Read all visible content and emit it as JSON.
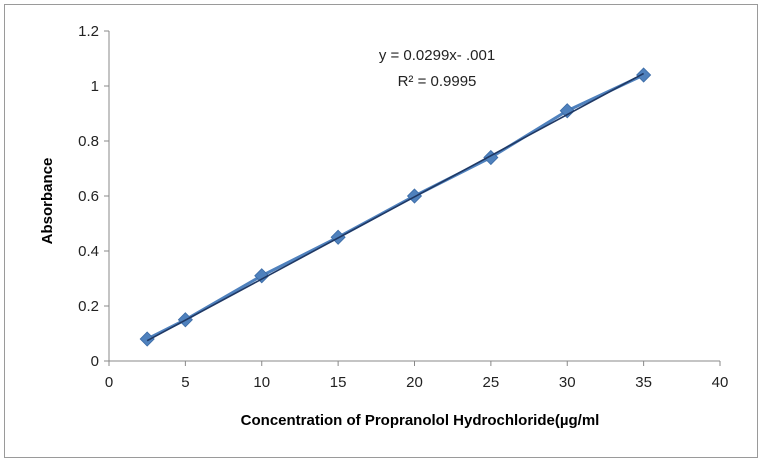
{
  "chart_data": {
    "type": "scatter",
    "x": [
      2.5,
      5,
      10,
      15,
      20,
      25,
      30,
      35
    ],
    "y": [
      0.08,
      0.15,
      0.31,
      0.45,
      0.6,
      0.74,
      0.91,
      1.04
    ],
    "xlabel": "Concentration of Propranolol Hydrochloride(µg/ml",
    "ylabel": "Absorbance",
    "xlim": [
      0,
      40
    ],
    "ylim": [
      0,
      1.2
    ],
    "xticks": [
      0,
      5,
      10,
      15,
      20,
      25,
      30,
      35,
      40
    ],
    "yticks": [
      0,
      0.2,
      0.4,
      0.6,
      0.8,
      1,
      1.2
    ],
    "xtick_labels": [
      "0",
      "5",
      "10",
      "15",
      "20",
      "25",
      "30",
      "35",
      "40"
    ],
    "ytick_labels": [
      "0",
      "0.2",
      "0.4",
      "0.6",
      "0.8",
      "1",
      "1.2"
    ],
    "trendline": {
      "slope": 0.0299,
      "intercept": -0.001
    },
    "equation_label": "y = 0.0299x- .001",
    "r2_label": "R² = 0.9995",
    "grid": false,
    "legend": "none",
    "colors": {
      "series": "#4f81bd",
      "trendline": "#1f3864",
      "axis": "#888888"
    }
  }
}
